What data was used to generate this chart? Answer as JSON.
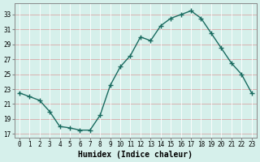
{
  "x": [
    0,
    1,
    2,
    3,
    4,
    5,
    6,
    7,
    8,
    9,
    10,
    11,
    12,
    13,
    14,
    15,
    16,
    17,
    18,
    19,
    20,
    21,
    22,
    23
  ],
  "y": [
    22.5,
    22.0,
    21.5,
    20.0,
    18.0,
    17.8,
    17.5,
    17.5,
    19.5,
    23.5,
    26.0,
    27.5,
    30.0,
    29.5,
    31.5,
    32.5,
    33.0,
    33.5,
    32.5,
    30.5,
    28.5,
    26.5,
    25.0,
    22.5
  ],
  "line_color": "#1a6b60",
  "marker": "+",
  "marker_size": 4,
  "bg_color": "#d6f0eb",
  "grid_color": "#c8dedd",
  "grid_color2": "#e8b8b8",
  "xlabel": "Humidex (Indice chaleur)",
  "xlim": [
    -0.5,
    23.5
  ],
  "ylim": [
    16.5,
    34.5
  ],
  "yticks": [
    17,
    19,
    21,
    23,
    25,
    27,
    29,
    31,
    33
  ],
  "xticks": [
    0,
    1,
    2,
    3,
    4,
    5,
    6,
    7,
    8,
    9,
    10,
    11,
    12,
    13,
    14,
    15,
    16,
    17,
    18,
    19,
    20,
    21,
    22,
    23
  ],
  "tick_fontsize": 5.5,
  "xlabel_fontsize": 7.0,
  "line_width": 1.0,
  "spine_color": "#888888"
}
